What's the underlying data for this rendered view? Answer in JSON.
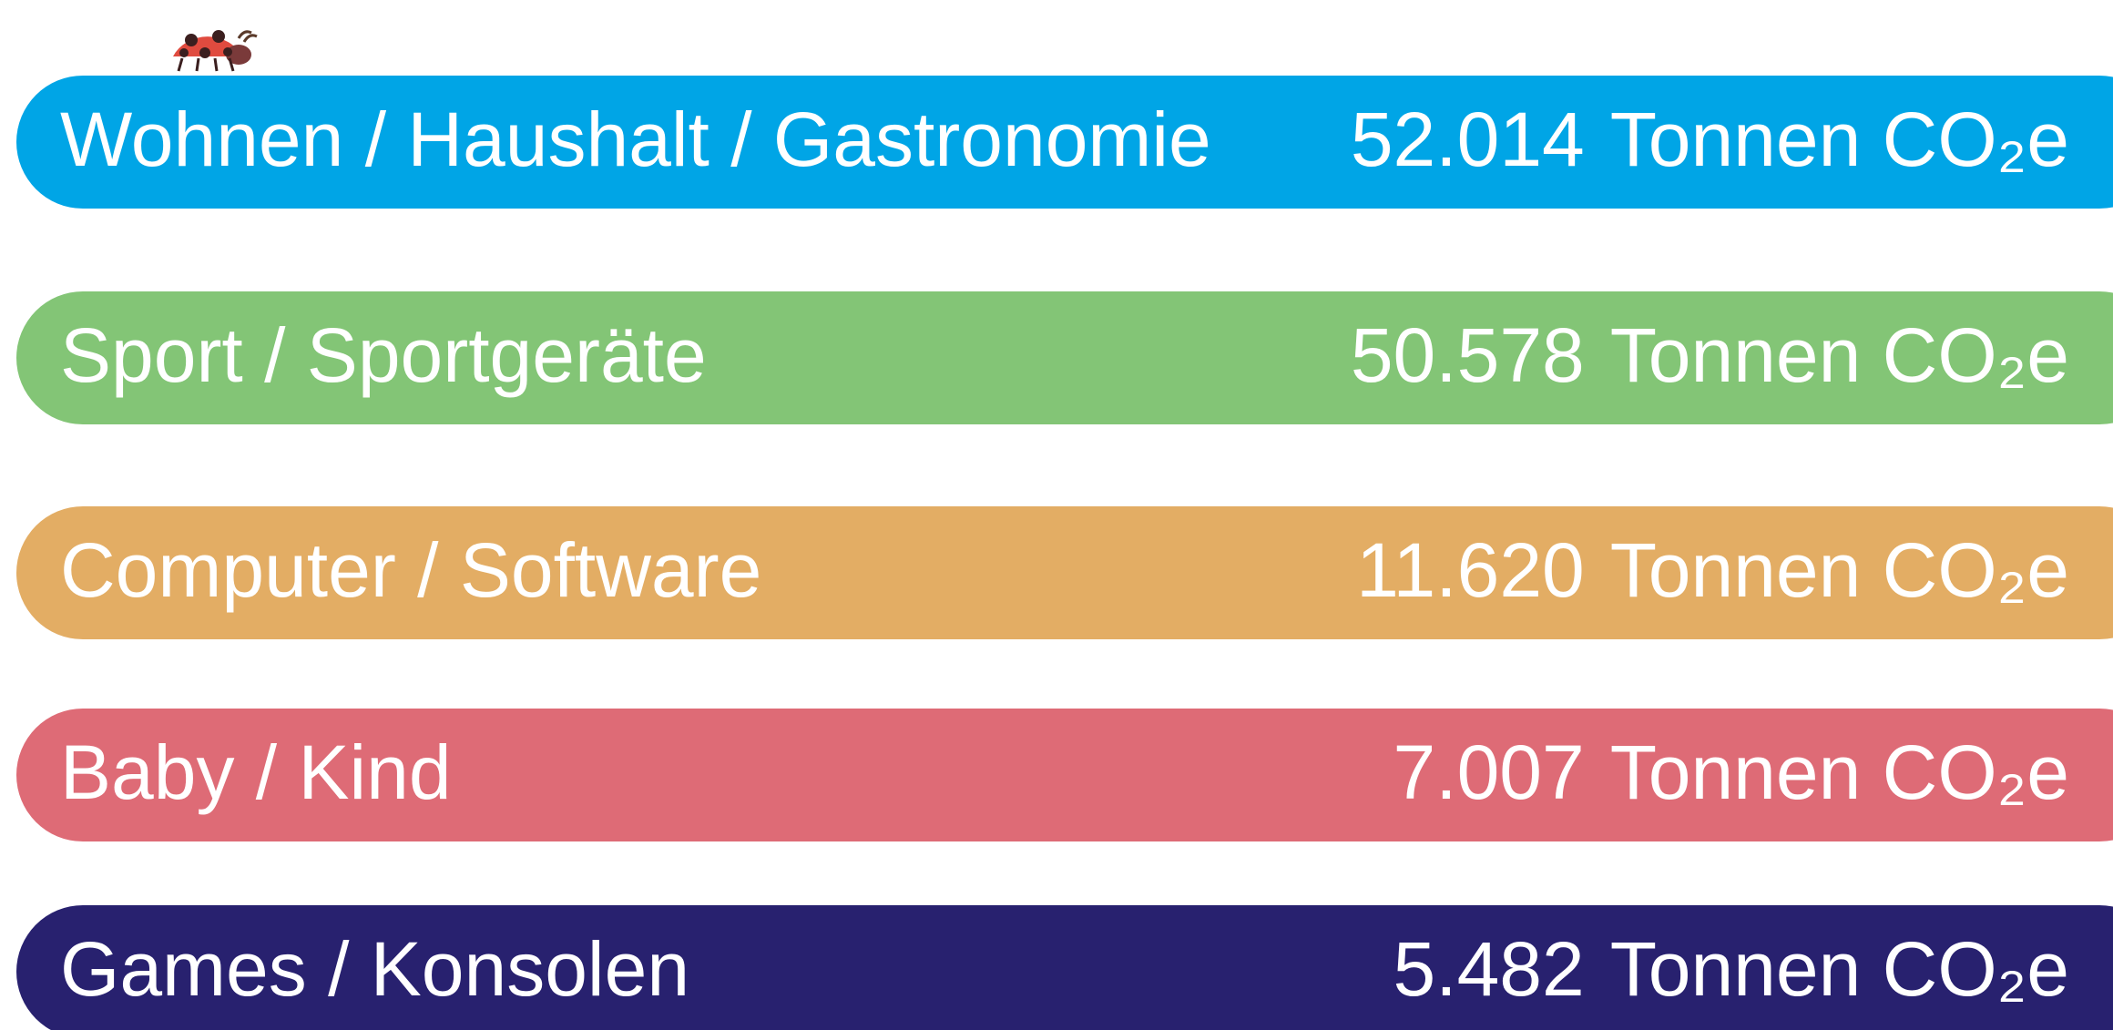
{
  "rows": [
    {
      "label": "Wohnen / Haushalt / Gastronomie",
      "amount": "52.014",
      "unit": "Tonnen CO₂e",
      "color": "#00a5e6"
    },
    {
      "label": "Sport / Sportgeräte",
      "amount": "50.578",
      "unit": "Tonnen CO₂e",
      "color": "#83c576"
    },
    {
      "label": "Computer / Software",
      "amount": "11.620",
      "unit": "Tonnen CO₂e",
      "color": "#e3ad64"
    },
    {
      "label": "Baby / Kind",
      "amount": "7.007",
      "unit": "Tonnen CO₂e",
      "color": "#de6b76"
    },
    {
      "label": "Games / Konsolen",
      "amount": "5.482",
      "unit": "Tonnen CO₂e",
      "color": "#28216f"
    }
  ]
}
